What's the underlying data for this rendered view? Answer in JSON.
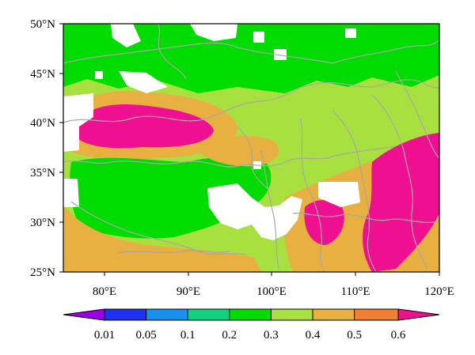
{
  "map": {
    "latitude_labels": [
      "50°N",
      "45°N",
      "40°N",
      "35°N",
      "30°N",
      "25°N"
    ],
    "longitude_labels": [
      "80°E",
      "90°E",
      "100°E",
      "110°E",
      "120°E"
    ],
    "lon_range": [
      75,
      120
    ],
    "lat_range": [
      25,
      50
    ],
    "nodata_color": "#ffffff",
    "border_color": "#a8a8a8",
    "colorbar": {
      "labels": [
        "0.01",
        "0.05",
        "0.1",
        "0.2",
        "0.3",
        "0.4",
        "0.5",
        "0.6"
      ],
      "colors": [
        "#9a00e8",
        "#2030f0",
        "#1890f0",
        "#10d080",
        "#00dc00",
        "#a8e040",
        "#e8b040",
        "#f08030",
        "#ee1090"
      ]
    },
    "regions": [
      {
        "name": "base",
        "color": "#a8e040"
      },
      {
        "name": "northwest",
        "color": "#00dc00"
      },
      {
        "name": "tarim-basin",
        "color": "#ee1090"
      },
      {
        "name": "tarim-rim",
        "color": "#e8b040"
      },
      {
        "name": "tibetan-plateau",
        "color": "#00dc00"
      },
      {
        "name": "qaidam",
        "color": "#e8b040"
      },
      {
        "name": "himalaya-south",
        "color": "#e8b040"
      },
      {
        "name": "sichuan-basin",
        "color": "#ee1090"
      },
      {
        "name": "east-china",
        "color": "#ee1090"
      },
      {
        "name": "south-china",
        "color": "#e8b040"
      }
    ]
  }
}
